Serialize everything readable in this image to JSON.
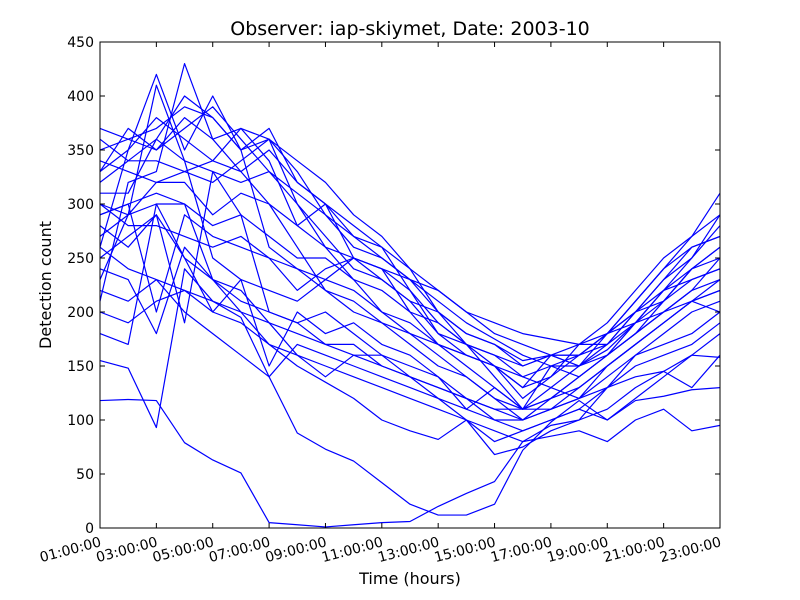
{
  "chart_data": {
    "type": "line",
    "title": "Observer: iap-skiymet, Date: 2003-10",
    "xlabel": "Time (hours)",
    "ylabel": "Detection count",
    "xlim": [
      1,
      23
    ],
    "ylim": [
      0,
      450
    ],
    "x_ticks": [
      1,
      3,
      5,
      7,
      9,
      11,
      13,
      15,
      17,
      19,
      21,
      23
    ],
    "x_tick_labels": [
      "01:00:00",
      "03:00:00",
      "05:00:00",
      "07:00:00",
      "09:00:00",
      "11:00:00",
      "13:00:00",
      "15:00:00",
      "17:00:00",
      "19:00:00",
      "21:00:00",
      "23:00:00"
    ],
    "y_ticks": [
      0,
      50,
      100,
      150,
      200,
      250,
      300,
      350,
      400,
      450
    ],
    "grid": false,
    "line_color": "#0000ff",
    "x": [
      1,
      2,
      3,
      4,
      5,
      6,
      7,
      8,
      9,
      10,
      11,
      12,
      13,
      14,
      15,
      16,
      17,
      18,
      19,
      20,
      21,
      22,
      23
    ],
    "series": [
      {
        "values": [
          118,
          119,
          118,
          79,
          63,
          51,
          5,
          3,
          1,
          3,
          5,
          6,
          20,
          32,
          43,
          80,
          95,
          100,
          130,
          140,
          145,
          160,
          158
        ]
      },
      {
        "values": [
          155,
          148,
          93,
          240,
          210,
          195,
          140,
          88,
          73,
          62,
          42,
          22,
          12,
          12,
          22,
          72,
          98,
          118,
          100,
          118,
          122,
          128,
          130
        ]
      },
      {
        "values": [
          180,
          170,
          300,
          300,
          230,
          200,
          170,
          150,
          135,
          120,
          100,
          90,
          82,
          100,
          68,
          75,
          90,
          100,
          110,
          130,
          145,
          130,
          160
        ]
      },
      {
        "values": [
          230,
          290,
          410,
          340,
          250,
          230,
          150,
          200,
          180,
          190,
          170,
          160,
          140,
          120,
          110,
          100,
          120,
          130,
          150,
          170,
          190,
          210,
          200
        ]
      },
      {
        "values": [
          290,
          300,
          200,
          290,
          270,
          260,
          250,
          220,
          240,
          250,
          230,
          210,
          200,
          180,
          170,
          155,
          160,
          150,
          165,
          190,
          220,
          230,
          240
        ]
      },
      {
        "values": [
          370,
          360,
          350,
          370,
          390,
          360,
          330,
          310,
          290,
          260,
          250,
          230,
          200,
          170,
          160,
          140,
          130,
          150,
          180,
          200,
          230,
          250,
          290
        ]
      },
      {
        "values": [
          320,
          340,
          360,
          400,
          380,
          350,
          370,
          320,
          300,
          270,
          260,
          220,
          190,
          170,
          150,
          130,
          160,
          160,
          180,
          210,
          240,
          260,
          270
        ]
      },
      {
        "values": [
          300,
          290,
          320,
          330,
          340,
          370,
          360,
          300,
          270,
          240,
          230,
          210,
          180,
          160,
          150,
          120,
          140,
          170,
          190,
          220,
          250,
          270,
          310
        ]
      },
      {
        "values": [
          260,
          350,
          420,
          350,
          400,
          350,
          260,
          240,
          230,
          250,
          240,
          220,
          180,
          170,
          140,
          110,
          150,
          160,
          170,
          200,
          220,
          250,
          280
        ]
      },
      {
        "values": [
          250,
          270,
          290,
          190,
          330,
          290,
          200,
          190,
          200,
          180,
          160,
          150,
          140,
          110,
          130,
          110,
          130,
          120,
          150,
          170,
          190,
          210,
          230
        ]
      },
      {
        "values": [
          210,
          320,
          330,
          430,
          360,
          330,
          300,
          260,
          220,
          200,
          190,
          180,
          170,
          160,
          150,
          140,
          150,
          140,
          160,
          180,
          200,
          220,
          250
        ]
      },
      {
        "values": [
          330,
          370,
          350,
          380,
          360,
          370,
          340,
          280,
          300,
          250,
          240,
          200,
          190,
          170,
          160,
          150,
          160,
          170,
          170,
          200,
          230,
          260,
          270
        ]
      },
      {
        "values": [
          310,
          310,
          360,
          340,
          330,
          320,
          330,
          300,
          260,
          230,
          220,
          200,
          170,
          160,
          150,
          130,
          140,
          160,
          180,
          200,
          210,
          230,
          240
        ]
      },
      {
        "values": [
          240,
          230,
          180,
          260,
          230,
          220,
          190,
          160,
          140,
          160,
          160,
          140,
          130,
          120,
          100,
          100,
          110,
          120,
          130,
          160,
          170,
          180,
          200
        ]
      },
      {
        "values": [
          270,
          290,
          300,
          250,
          200,
          230,
          220,
          210,
          230,
          220,
          200,
          190,
          170,
          150,
          130,
          110,
          120,
          140,
          160,
          180,
          200,
          220,
          230
        ]
      },
      {
        "values": [
          290,
          300,
          310,
          300,
          280,
          290,
          270,
          250,
          250,
          230,
          200,
          180,
          160,
          140,
          120,
          100,
          110,
          130,
          150,
          170,
          190,
          210,
          220
        ]
      },
      {
        "values": [
          350,
          360,
          370,
          390,
          380,
          350,
          360,
          340,
          320,
          290,
          270,
          240,
          200,
          180,
          170,
          150,
          160,
          160,
          180,
          210,
          240,
          270,
          290
        ]
      },
      {
        "values": [
          280,
          260,
          290,
          250,
          230,
          210,
          200,
          190,
          170,
          170,
          150,
          140,
          120,
          100,
          80,
          90,
          100,
          110,
          100,
          120,
          140,
          160,
          180
        ]
      },
      {
        "values": [
          200,
          190,
          210,
          220,
          200,
          190,
          170,
          160,
          150,
          140,
          130,
          120,
          110,
          100,
          90,
          80,
          85,
          90,
          80,
          100,
          110,
          90,
          95
        ]
      },
      {
        "values": [
          360,
          340,
          340,
          330,
          320,
          340,
          360,
          330,
          290,
          270,
          250,
          230,
          220,
          200,
          190,
          180,
          175,
          170,
          180,
          190,
          200,
          210,
          220
        ]
      },
      {
        "values": [
          340,
          330,
          320,
          320,
          290,
          310,
          300,
          280,
          260,
          250,
          240,
          230,
          210,
          190,
          175,
          160,
          150,
          150,
          170,
          190,
          220,
          240,
          260
        ]
      },
      {
        "values": [
          300,
          280,
          280,
          270,
          260,
          270,
          250,
          240,
          220,
          210,
          190,
          170,
          150,
          140,
          120,
          110,
          120,
          140,
          160,
          190,
          210,
          240,
          250
        ]
      },
      {
        "values": [
          260,
          240,
          230,
          220,
          210,
          200,
          190,
          180,
          170,
          160,
          150,
          140,
          130,
          120,
          110,
          110,
          110,
          120,
          140,
          160,
          180,
          200,
          210
        ]
      },
      {
        "values": [
          330,
          350,
          380,
          360,
          340,
          330,
          350,
          320,
          300,
          280,
          260,
          240,
          220,
          200,
          180,
          170,
          160,
          150,
          160,
          180,
          210,
          240,
          260
        ]
      },
      {
        "values": [
          220,
          210,
          230,
          200,
          180,
          160,
          140,
          170,
          160,
          150,
          140,
          130,
          120,
          110,
          100,
          90,
          100,
          110,
          130,
          150,
          160,
          170,
          190
        ]
      }
    ]
  }
}
